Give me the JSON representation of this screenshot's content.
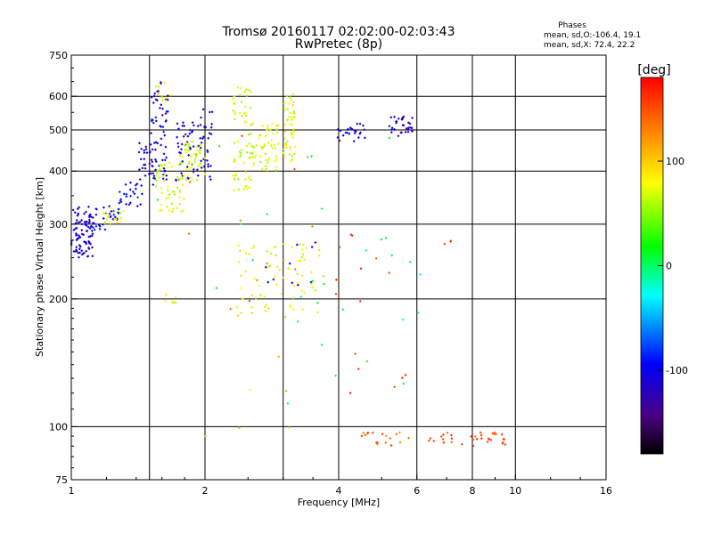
{
  "chart_data": {
    "type": "scatter",
    "title": "Tromsø 20160117 02:02:00-02:03:43",
    "subtitle": "RwPretec (8p)",
    "xlabel": "Frequency [MHz]",
    "ylabel": "Stationary phase Virtual Height [km]",
    "x_scale": "log",
    "y_scale": "log",
    "xlim": [
      1,
      16
    ],
    "ylim": [
      75,
      750
    ],
    "x_ticks": [
      1,
      2,
      4,
      6,
      8,
      10,
      16
    ],
    "x_tick_labels": [
      "1",
      "2",
      "4",
      "6",
      "8",
      "10",
      "16"
    ],
    "x_grid": [
      1.5,
      2,
      3,
      4,
      6,
      8,
      10
    ],
    "y_ticks": [
      75,
      100,
      200,
      300,
      400,
      500,
      600,
      750
    ],
    "y_tick_labels": [
      "75",
      "100",
      "200",
      "300",
      "400",
      "500",
      "600",
      "750"
    ],
    "y_grid": [
      100,
      200,
      300,
      400,
      500,
      600
    ],
    "grid": true,
    "stats_header": "Phases",
    "stats": [
      "mean, sd,O:-106.4, 19.1",
      "mean, sd,X:  72.4, 22.2"
    ],
    "colorbar": {
      "label": "[deg]",
      "range": [
        -180,
        180
      ],
      "ticks": [
        100,
        0,
        -100
      ],
      "tick_labels": [
        "100",
        "0",
        "-100"
      ]
    },
    "series": [
      {
        "clusters": [
          {
            "x": [
              1.0,
              1.12
            ],
            "y": [
              250,
              330
            ],
            "phase": -110,
            "n": 90
          },
          {
            "x": [
              1.12,
              1.28
            ],
            "y": [
              290,
              335
            ],
            "phase": -100,
            "n": 30
          },
          {
            "x": [
              1.28,
              1.45
            ],
            "y": [
              330,
              380
            ],
            "phase": -95,
            "n": 25
          },
          {
            "x": [
              1.42,
              1.55
            ],
            "y": [
              370,
              470
            ],
            "phase": -110,
            "n": 30
          },
          {
            "x": [
              1.5,
              1.65
            ],
            "y": [
              380,
              620
            ],
            "phase": -105,
            "n": 55
          },
          {
            "x": [
              1.72,
              1.95
            ],
            "y": [
              380,
              540
            ],
            "phase": -108,
            "n": 45
          },
          {
            "x": [
              1.95,
              2.08
            ],
            "y": [
              380,
              560
            ],
            "phase": -110,
            "n": 30
          },
          {
            "x": [
              3.95,
              4.6
            ],
            "y": [
              470,
              520
            ],
            "phase": -110,
            "n": 25
          },
          {
            "x": [
              5.2,
              5.9
            ],
            "y": [
              480,
              540
            ],
            "phase": -115,
            "n": 35
          },
          {
            "x": [
              2.7,
              3.7
            ],
            "y": [
              185,
              280
            ],
            "phase": -110,
            "n": 10
          },
          {
            "x": [
              1.55,
              1.7
            ],
            "y": [
              580,
              650
            ],
            "phase": -120,
            "n": 4
          }
        ]
      },
      {
        "clusters": [
          {
            "x": [
              1.18,
              1.32
            ],
            "y": [
              300,
              330
            ],
            "phase": 75,
            "n": 18
          },
          {
            "x": [
              1.55,
              1.8
            ],
            "y": [
              320,
              420
            ],
            "phase": 70,
            "n": 55
          },
          {
            "x": [
              1.75,
              2.0
            ],
            "y": [
              380,
              470
            ],
            "phase": 68,
            "n": 45
          },
          {
            "x": [
              1.55,
              1.68
            ],
            "y": [
              580,
              650
            ],
            "phase": 75,
            "n": 10
          },
          {
            "x": [
              2.3,
              2.55
            ],
            "y": [
              360,
              640
            ],
            "phase": 72,
            "n": 70
          },
          {
            "x": [
              2.55,
              2.95
            ],
            "y": [
              400,
              520
            ],
            "phase": 70,
            "n": 55
          },
          {
            "x": [
              3.0,
              3.2
            ],
            "y": [
              420,
              610
            ],
            "phase": 75,
            "n": 50
          },
          {
            "x": [
              2.35,
              3.7
            ],
            "y": [
              185,
              270
            ],
            "phase": 75,
            "n": 70
          },
          {
            "x": [
              1.62,
              1.72
            ],
            "y": [
              195,
              205
            ],
            "phase": 70,
            "n": 8
          },
          {
            "x": [
              1.9,
              3.6
            ],
            "y": [
              90,
              200
            ],
            "phase": 90,
            "n": 8
          }
        ]
      },
      {
        "clusters": [
          {
            "x": [
              4.5,
              5.8
            ],
            "y": [
              90,
              97
            ],
            "phase": 140,
            "n": 18
          },
          {
            "x": [
              6.2,
              9.5
            ],
            "y": [
              90,
              97
            ],
            "phase": 150,
            "n": 35
          },
          {
            "x": [
              3.8,
              5.8
            ],
            "y": [
              110,
              290
            ],
            "phase": 160,
            "n": 15
          },
          {
            "x": [
              6.3,
              7.3
            ],
            "y": [
              265,
              275
            ],
            "phase": 150,
            "n": 3
          },
          {
            "x": [
              1.7,
              3.7
            ],
            "y": [
              115,
              500
            ],
            "phase": 140,
            "n": 12
          }
        ]
      },
      {
        "clusters": [
          {
            "x": [
              3.0,
              6.2
            ],
            "y": [
              110,
              290
            ],
            "phase": -5,
            "n": 14
          },
          {
            "x": [
              1.5,
              5.5
            ],
            "y": [
              100,
              560
            ],
            "phase": 10,
            "n": 14
          }
        ]
      }
    ]
  }
}
